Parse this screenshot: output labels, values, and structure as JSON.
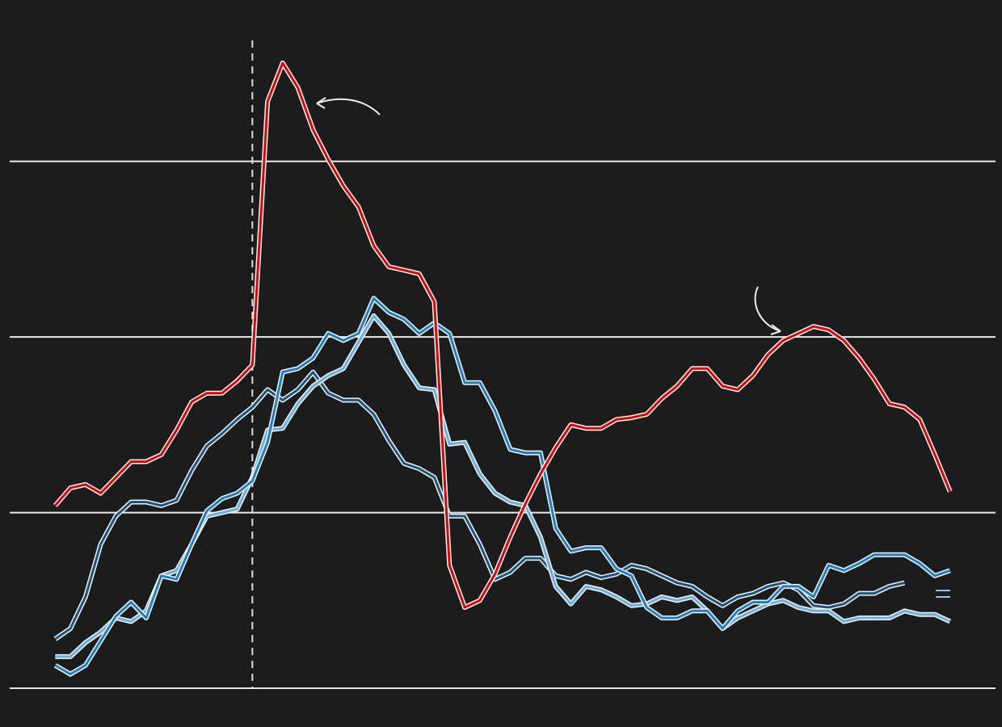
{
  "chart_data": {
    "type": "line",
    "x": [
      0,
      1,
      2,
      3,
      4,
      5,
      6,
      7,
      8,
      9,
      10,
      11,
      12,
      13,
      14,
      15,
      16,
      17,
      18,
      19,
      20,
      21,
      22,
      23,
      24,
      25,
      26,
      27,
      28,
      29,
      30,
      31,
      32,
      33,
      34,
      35,
      36,
      37,
      38,
      39,
      40,
      41,
      42,
      43,
      44,
      45,
      46,
      47,
      48,
      49,
      50,
      51,
      52,
      53,
      54,
      55,
      56,
      57,
      58,
      59
    ],
    "xlim": [
      -3,
      62
    ],
    "ylim": [
      0,
      39
    ],
    "yticks": [
      0,
      10,
      20,
      30
    ],
    "grid": true,
    "vline": 13,
    "series": [
      {
        "color": "#1a5580",
        "values": [
          2.8,
          3.4,
          5.2,
          8.2,
          9.8,
          10.6,
          10.6,
          10.4,
          10.7,
          12.4,
          13.8,
          14.5,
          15.3,
          16.0,
          17.0,
          16.4,
          17.0,
          18.0,
          16.8,
          16.4,
          16.4,
          15.6,
          14.1,
          12.8,
          12.5,
          12.0,
          9.8,
          9.8,
          8.2,
          6.2,
          6.6,
          7.4,
          7.4,
          6.4,
          6.2,
          6.6,
          6.3,
          6.5,
          7.0,
          6.8,
          6.4,
          6.0,
          5.8,
          5.2,
          4.7,
          5.2,
          5.4,
          5.8,
          6.0,
          5.6,
          4.7,
          4.6,
          4.8,
          5.4,
          5.4,
          5.8,
          6.0,
          null,
          null,
          null
        ]
      },
      {
        "color": "#6aaee0",
        "values": [
          1.8,
          1.8,
          2.6,
          3.2,
          4.0,
          3.8,
          4.4,
          6.4,
          6.7,
          8.2,
          9.8,
          10.0,
          10.2,
          12.0,
          14.7,
          14.8,
          16.2,
          17.2,
          17.8,
          18.2,
          19.7,
          21.2,
          20.2,
          18.4,
          17.1,
          17.0,
          13.9,
          14.0,
          12.2,
          11.1,
          10.6,
          10.4,
          8.6,
          5.8,
          4.8,
          5.8,
          5.6,
          5.2,
          4.7,
          4.8,
          5.2,
          5.0,
          5.2,
          4.4,
          3.4,
          4.0,
          4.4,
          4.8,
          5.0,
          4.6,
          4.4,
          4.4,
          3.8,
          4.0,
          4.0,
          4.0,
          4.4,
          4.2,
          4.2,
          3.8
        ]
      },
      {
        "color": "#1f7fc0",
        "values": [
          1.3,
          0.8,
          1.3,
          2.7,
          4.1,
          4.9,
          4.0,
          6.4,
          6.2,
          8.2,
          10.1,
          10.8,
          11.1,
          11.8,
          14.0,
          18.0,
          18.2,
          18.8,
          20.2,
          19.8,
          20.2,
          22.2,
          21.4,
          21.0,
          20.2,
          20.8,
          20.2,
          17.4,
          17.4,
          15.8,
          13.6,
          13.4,
          13.4,
          9.1,
          7.8,
          8.0,
          8.0,
          6.8,
          6.4,
          4.6,
          4.0,
          4.0,
          4.4,
          4.4,
          3.4,
          4.4,
          4.9,
          4.9,
          5.8,
          5.8,
          5.2,
          7.0,
          6.7,
          7.1,
          7.6,
          7.6,
          7.6,
          7.1,
          6.4,
          6.7
        ]
      },
      {
        "color": "#cc0a0a",
        "values": [
          10.4,
          11.4,
          11.6,
          11.1,
          12.0,
          12.9,
          12.9,
          13.3,
          14.7,
          16.3,
          16.8,
          16.8,
          17.5,
          18.4,
          33.4,
          35.6,
          34.2,
          31.8,
          30.1,
          28.6,
          27.4,
          25.2,
          24.0,
          23.8,
          23.6,
          22.0,
          7.0,
          4.6,
          5.0,
          6.5,
          8.6,
          10.5,
          12.2,
          13.7,
          15.0,
          14.8,
          14.8,
          15.3,
          15.4,
          15.6,
          16.5,
          17.2,
          18.2,
          18.2,
          17.2,
          17.0,
          17.8,
          19.0,
          19.8,
          20.2,
          20.6,
          20.4,
          19.8,
          18.8,
          17.6,
          16.2,
          16.0,
          15.3,
          13.3,
          11.2
        ]
      }
    ]
  }
}
